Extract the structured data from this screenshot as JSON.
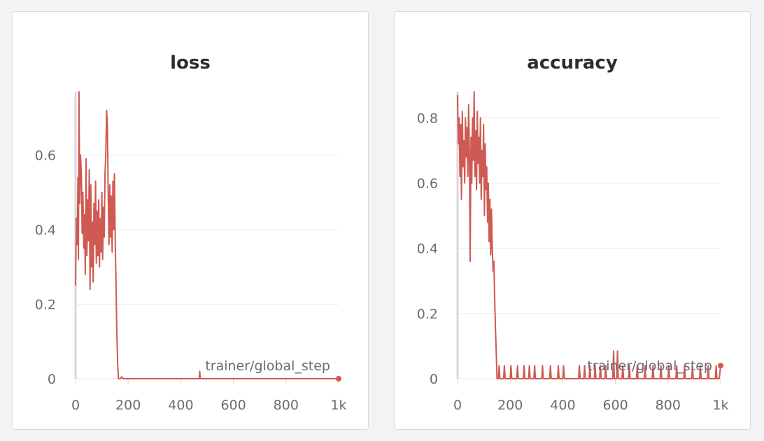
{
  "chart_data": [
    {
      "type": "line",
      "title": "loss",
      "xlabel": "trainer/global_step",
      "ylabel": "",
      "x_ticks": [
        "0",
        "200",
        "400",
        "600",
        "800",
        "1k"
      ],
      "y_ticks": [
        "0",
        "0.2",
        "0.4",
        "0.6"
      ],
      "xlim": [
        0,
        1000
      ],
      "ylim": [
        0,
        0.77
      ],
      "grid": true,
      "color": "#cf5a52",
      "series": [
        {
          "values": [
            [
              0,
              0.25
            ],
            [
              3,
              0.43
            ],
            [
              6,
              0.36
            ],
            [
              9,
              0.54
            ],
            [
              11,
              0.32
            ],
            [
              13,
              0.77
            ],
            [
              16,
              0.47
            ],
            [
              19,
              0.6
            ],
            [
              22,
              0.55
            ],
            [
              25,
              0.39
            ],
            [
              28,
              0.5
            ],
            [
              31,
              0.35
            ],
            [
              34,
              0.44
            ],
            [
              37,
              0.28
            ],
            [
              40,
              0.59
            ],
            [
              43,
              0.33
            ],
            [
              46,
              0.48
            ],
            [
              49,
              0.37
            ],
            [
              52,
              0.56
            ],
            [
              55,
              0.24
            ],
            [
              58,
              0.52
            ],
            [
              61,
              0.3
            ],
            [
              64,
              0.42
            ],
            [
              67,
              0.26
            ],
            [
              70,
              0.47
            ],
            [
              73,
              0.36
            ],
            [
              76,
              0.53
            ],
            [
              79,
              0.31
            ],
            [
              82,
              0.45
            ],
            [
              85,
              0.33
            ],
            [
              88,
              0.48
            ],
            [
              91,
              0.3
            ],
            [
              94,
              0.43
            ],
            [
              97,
              0.34
            ],
            [
              100,
              0.5
            ],
            [
              103,
              0.32
            ],
            [
              106,
              0.46
            ],
            [
              109,
              0.38
            ],
            [
              112,
              0.55
            ],
            [
              115,
              0.6
            ],
            [
              118,
              0.72
            ],
            [
              121,
              0.68
            ],
            [
              124,
              0.5
            ],
            [
              127,
              0.36
            ],
            [
              130,
              0.52
            ],
            [
              133,
              0.38
            ],
            [
              136,
              0.49
            ],
            [
              139,
              0.34
            ],
            [
              142,
              0.53
            ],
            [
              145,
              0.4
            ],
            [
              148,
              0.55
            ],
            [
              151,
              0.36
            ],
            [
              154,
              0.25
            ],
            [
              157,
              0.12
            ],
            [
              160,
              0.04
            ],
            [
              163,
              0.0
            ],
            [
              170,
              0.0
            ],
            [
              175,
              0.005
            ],
            [
              180,
              0.0
            ],
            [
              300,
              0.0
            ],
            [
              470,
              0.0
            ],
            [
              472,
              0.02
            ],
            [
              474,
              0.0
            ],
            [
              1000,
              0.0
            ]
          ]
        }
      ]
    },
    {
      "type": "line",
      "title": "accuracy",
      "xlabel": "trainer/global_step",
      "ylabel": "",
      "x_ticks": [
        "0",
        "200",
        "400",
        "600",
        "800",
        "1k"
      ],
      "y_ticks": [
        "0",
        "0.2",
        "0.4",
        "0.6",
        "0.8"
      ],
      "xlim": [
        0,
        1000
      ],
      "ylim": [
        0,
        0.88
      ],
      "grid": true,
      "color": "#cf5a52",
      "series": [
        {
          "values": [
            [
              0,
              0.87
            ],
            [
              3,
              0.72
            ],
            [
              6,
              0.8
            ],
            [
              9,
              0.62
            ],
            [
              12,
              0.78
            ],
            [
              15,
              0.55
            ],
            [
              18,
              0.82
            ],
            [
              21,
              0.65
            ],
            [
              24,
              0.73
            ],
            [
              27,
              0.6
            ],
            [
              30,
              0.8
            ],
            [
              33,
              0.68
            ],
            [
              36,
              0.77
            ],
            [
              39,
              0.62
            ],
            [
              42,
              0.84
            ],
            [
              45,
              0.7
            ],
            [
              48,
              0.36
            ],
            [
              51,
              0.74
            ],
            [
              54,
              0.6
            ],
            [
              57,
              0.8
            ],
            [
              60,
              0.67
            ],
            [
              63,
              0.88
            ],
            [
              66,
              0.62
            ],
            [
              69,
              0.76
            ],
            [
              72,
              0.58
            ],
            [
              75,
              0.82
            ],
            [
              78,
              0.66
            ],
            [
              81,
              0.74
            ],
            [
              84,
              0.6
            ],
            [
              87,
              0.8
            ],
            [
              90,
              0.55
            ],
            [
              93,
              0.7
            ],
            [
              96,
              0.62
            ],
            [
              99,
              0.78
            ],
            [
              102,
              0.5
            ],
            [
              105,
              0.72
            ],
            [
              108,
              0.58
            ],
            [
              111,
              0.65
            ],
            [
              114,
              0.48
            ],
            [
              117,
              0.6
            ],
            [
              120,
              0.42
            ],
            [
              123,
              0.55
            ],
            [
              126,
              0.38
            ],
            [
              129,
              0.52
            ],
            [
              132,
              0.4
            ],
            [
              135,
              0.33
            ],
            [
              138,
              0.36
            ],
            [
              141,
              0.25
            ],
            [
              144,
              0.16
            ],
            [
              147,
              0.08
            ],
            [
              150,
              0.0
            ],
            [
              155,
              0.0
            ],
            [
              158,
              0.04
            ],
            [
              161,
              0.0
            ],
            [
              175,
              0.0
            ],
            [
              178,
              0.04
            ],
            [
              181,
              0.0
            ],
            [
              200,
              0.0
            ],
            [
              203,
              0.04
            ],
            [
              206,
              0.0
            ],
            [
              225,
              0.0
            ],
            [
              228,
              0.04
            ],
            [
              231,
              0.0
            ],
            [
              250,
              0.0
            ],
            [
              253,
              0.04
            ],
            [
              256,
              0.0
            ],
            [
              270,
              0.0
            ],
            [
              273,
              0.04
            ],
            [
              276,
              0.0
            ],
            [
              290,
              0.0
            ],
            [
              293,
              0.04
            ],
            [
              296,
              0.0
            ],
            [
              320,
              0.0
            ],
            [
              323,
              0.04
            ],
            [
              326,
              0.0
            ],
            [
              350,
              0.0
            ],
            [
              353,
              0.04
            ],
            [
              356,
              0.0
            ],
            [
              380,
              0.0
            ],
            [
              383,
              0.04
            ],
            [
              386,
              0.0
            ],
            [
              400,
              0.0
            ],
            [
              403,
              0.04
            ],
            [
              406,
              0.0
            ],
            [
              460,
              0.0
            ],
            [
              463,
              0.04
            ],
            [
              466,
              0.0
            ],
            [
              480,
              0.0
            ],
            [
              483,
              0.04
            ],
            [
              486,
              0.0
            ],
            [
              500,
              0.0
            ],
            [
              503,
              0.04
            ],
            [
              506,
              0.0
            ],
            [
              520,
              0.0
            ],
            [
              523,
              0.04
            ],
            [
              526,
              0.0
            ],
            [
              540,
              0.0
            ],
            [
              543,
              0.04
            ],
            [
              546,
              0.0
            ],
            [
              560,
              0.0
            ],
            [
              563,
              0.04
            ],
            [
              566,
              0.0
            ],
            [
              590,
              0.0
            ],
            [
              593,
              0.085
            ],
            [
              596,
              0.0
            ],
            [
              605,
              0.0
            ],
            [
              608,
              0.085
            ],
            [
              611,
              0.0
            ],
            [
              625,
              0.0
            ],
            [
              628,
              0.04
            ],
            [
              631,
              0.0
            ],
            [
              650,
              0.0
            ],
            [
              653,
              0.04
            ],
            [
              656,
              0.0
            ],
            [
              680,
              0.0
            ],
            [
              683,
              0.04
            ],
            [
              686,
              0.0
            ],
            [
              710,
              0.0
            ],
            [
              713,
              0.04
            ],
            [
              716,
              0.0
            ],
            [
              740,
              0.0
            ],
            [
              743,
              0.04
            ],
            [
              746,
              0.0
            ],
            [
              770,
              0.0
            ],
            [
              773,
              0.04
            ],
            [
              776,
              0.0
            ],
            [
              800,
              0.0
            ],
            [
              803,
              0.04
            ],
            [
              806,
              0.0
            ],
            [
              830,
              0.0
            ],
            [
              833,
              0.04
            ],
            [
              836,
              0.0
            ],
            [
              860,
              0.0
            ],
            [
              863,
              0.04
            ],
            [
              866,
              0.0
            ],
            [
              890,
              0.0
            ],
            [
              893,
              0.04
            ],
            [
              896,
              0.0
            ],
            [
              920,
              0.0
            ],
            [
              923,
              0.04
            ],
            [
              926,
              0.0
            ],
            [
              950,
              0.0
            ],
            [
              953,
              0.04
            ],
            [
              956,
              0.0
            ],
            [
              980,
              0.0
            ],
            [
              983,
              0.04
            ],
            [
              986,
              0.0
            ],
            [
              995,
              0.0
            ],
            [
              1000,
              0.04
            ]
          ]
        }
      ]
    }
  ]
}
